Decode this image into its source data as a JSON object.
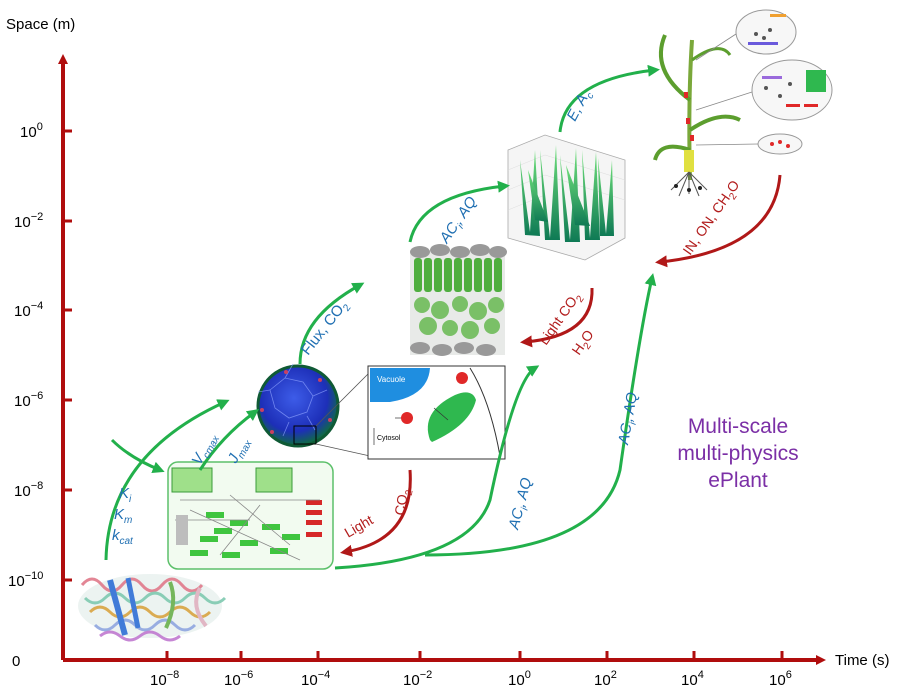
{
  "axes": {
    "y_title": "Space (m)",
    "x_title": "Time (s)",
    "origin": "0",
    "y_ticks": [
      {
        "base": "10",
        "exp": "0"
      },
      {
        "base": "10",
        "exp": "−2"
      },
      {
        "base": "10",
        "exp": "−4"
      },
      {
        "base": "10",
        "exp": "−6"
      },
      {
        "base": "10",
        "exp": "−8"
      },
      {
        "base": "10",
        "exp": "−10"
      }
    ],
    "x_ticks": [
      {
        "base": "10",
        "exp": "−8"
      },
      {
        "base": "10",
        "exp": "−6"
      },
      {
        "base": "10",
        "exp": "−4"
      },
      {
        "base": "10",
        "exp": "−2"
      },
      {
        "base": "10",
        "exp": "0"
      },
      {
        "base": "10",
        "exp": "2"
      },
      {
        "base": "10",
        "exp": "4"
      },
      {
        "base": "10",
        "exp": "6"
      }
    ]
  },
  "title": {
    "line1": "Multi-scale",
    "line2": "multi-physics",
    "line3": "ePlant"
  },
  "labels": {
    "ki": {
      "main": "K",
      "sub": "i"
    },
    "km": {
      "main": "K",
      "sub": "m"
    },
    "kcat": {
      "main": "k",
      "sub": "cat"
    },
    "vcmax": {
      "main": "V",
      "sub": "cmax"
    },
    "jmax": {
      "main": "J",
      "sub": "max"
    },
    "flux": {
      "a": "Flux, CO",
      "sub": "2"
    },
    "ac_aq_canopy": {
      "a": "AC",
      "sub": "i",
      "b": ", AQ"
    },
    "ac_aq_mid": {
      "a": "AC",
      "sub": "i",
      "b": ", AQ"
    },
    "ac_aq_right": {
      "a": "AC",
      "sub": "i",
      "b": ", AQ"
    },
    "e_ac": {
      "a": "E, A",
      "sub": "c"
    },
    "light_low": "Light",
    "co2_low": {
      "a": "CO",
      "sub": "2"
    },
    "light_co2": {
      "a": "Light CO",
      "sub": "2"
    },
    "h2o": {
      "a": "H",
      "sub": "2",
      "b": "O"
    },
    "in_on": {
      "a": "IN, ON, CH",
      "sub": "2",
      "b": "O"
    }
  },
  "insets": {
    "vacuole": "Vacuole",
    "cytosol": "Cytosol"
  },
  "colors": {
    "axis": "#b00d0d",
    "green_arrow": "#22b04b",
    "red_arrow": "#b01818",
    "blue_text": "#1f6fb2",
    "purple_text": "#7b2fa6"
  }
}
